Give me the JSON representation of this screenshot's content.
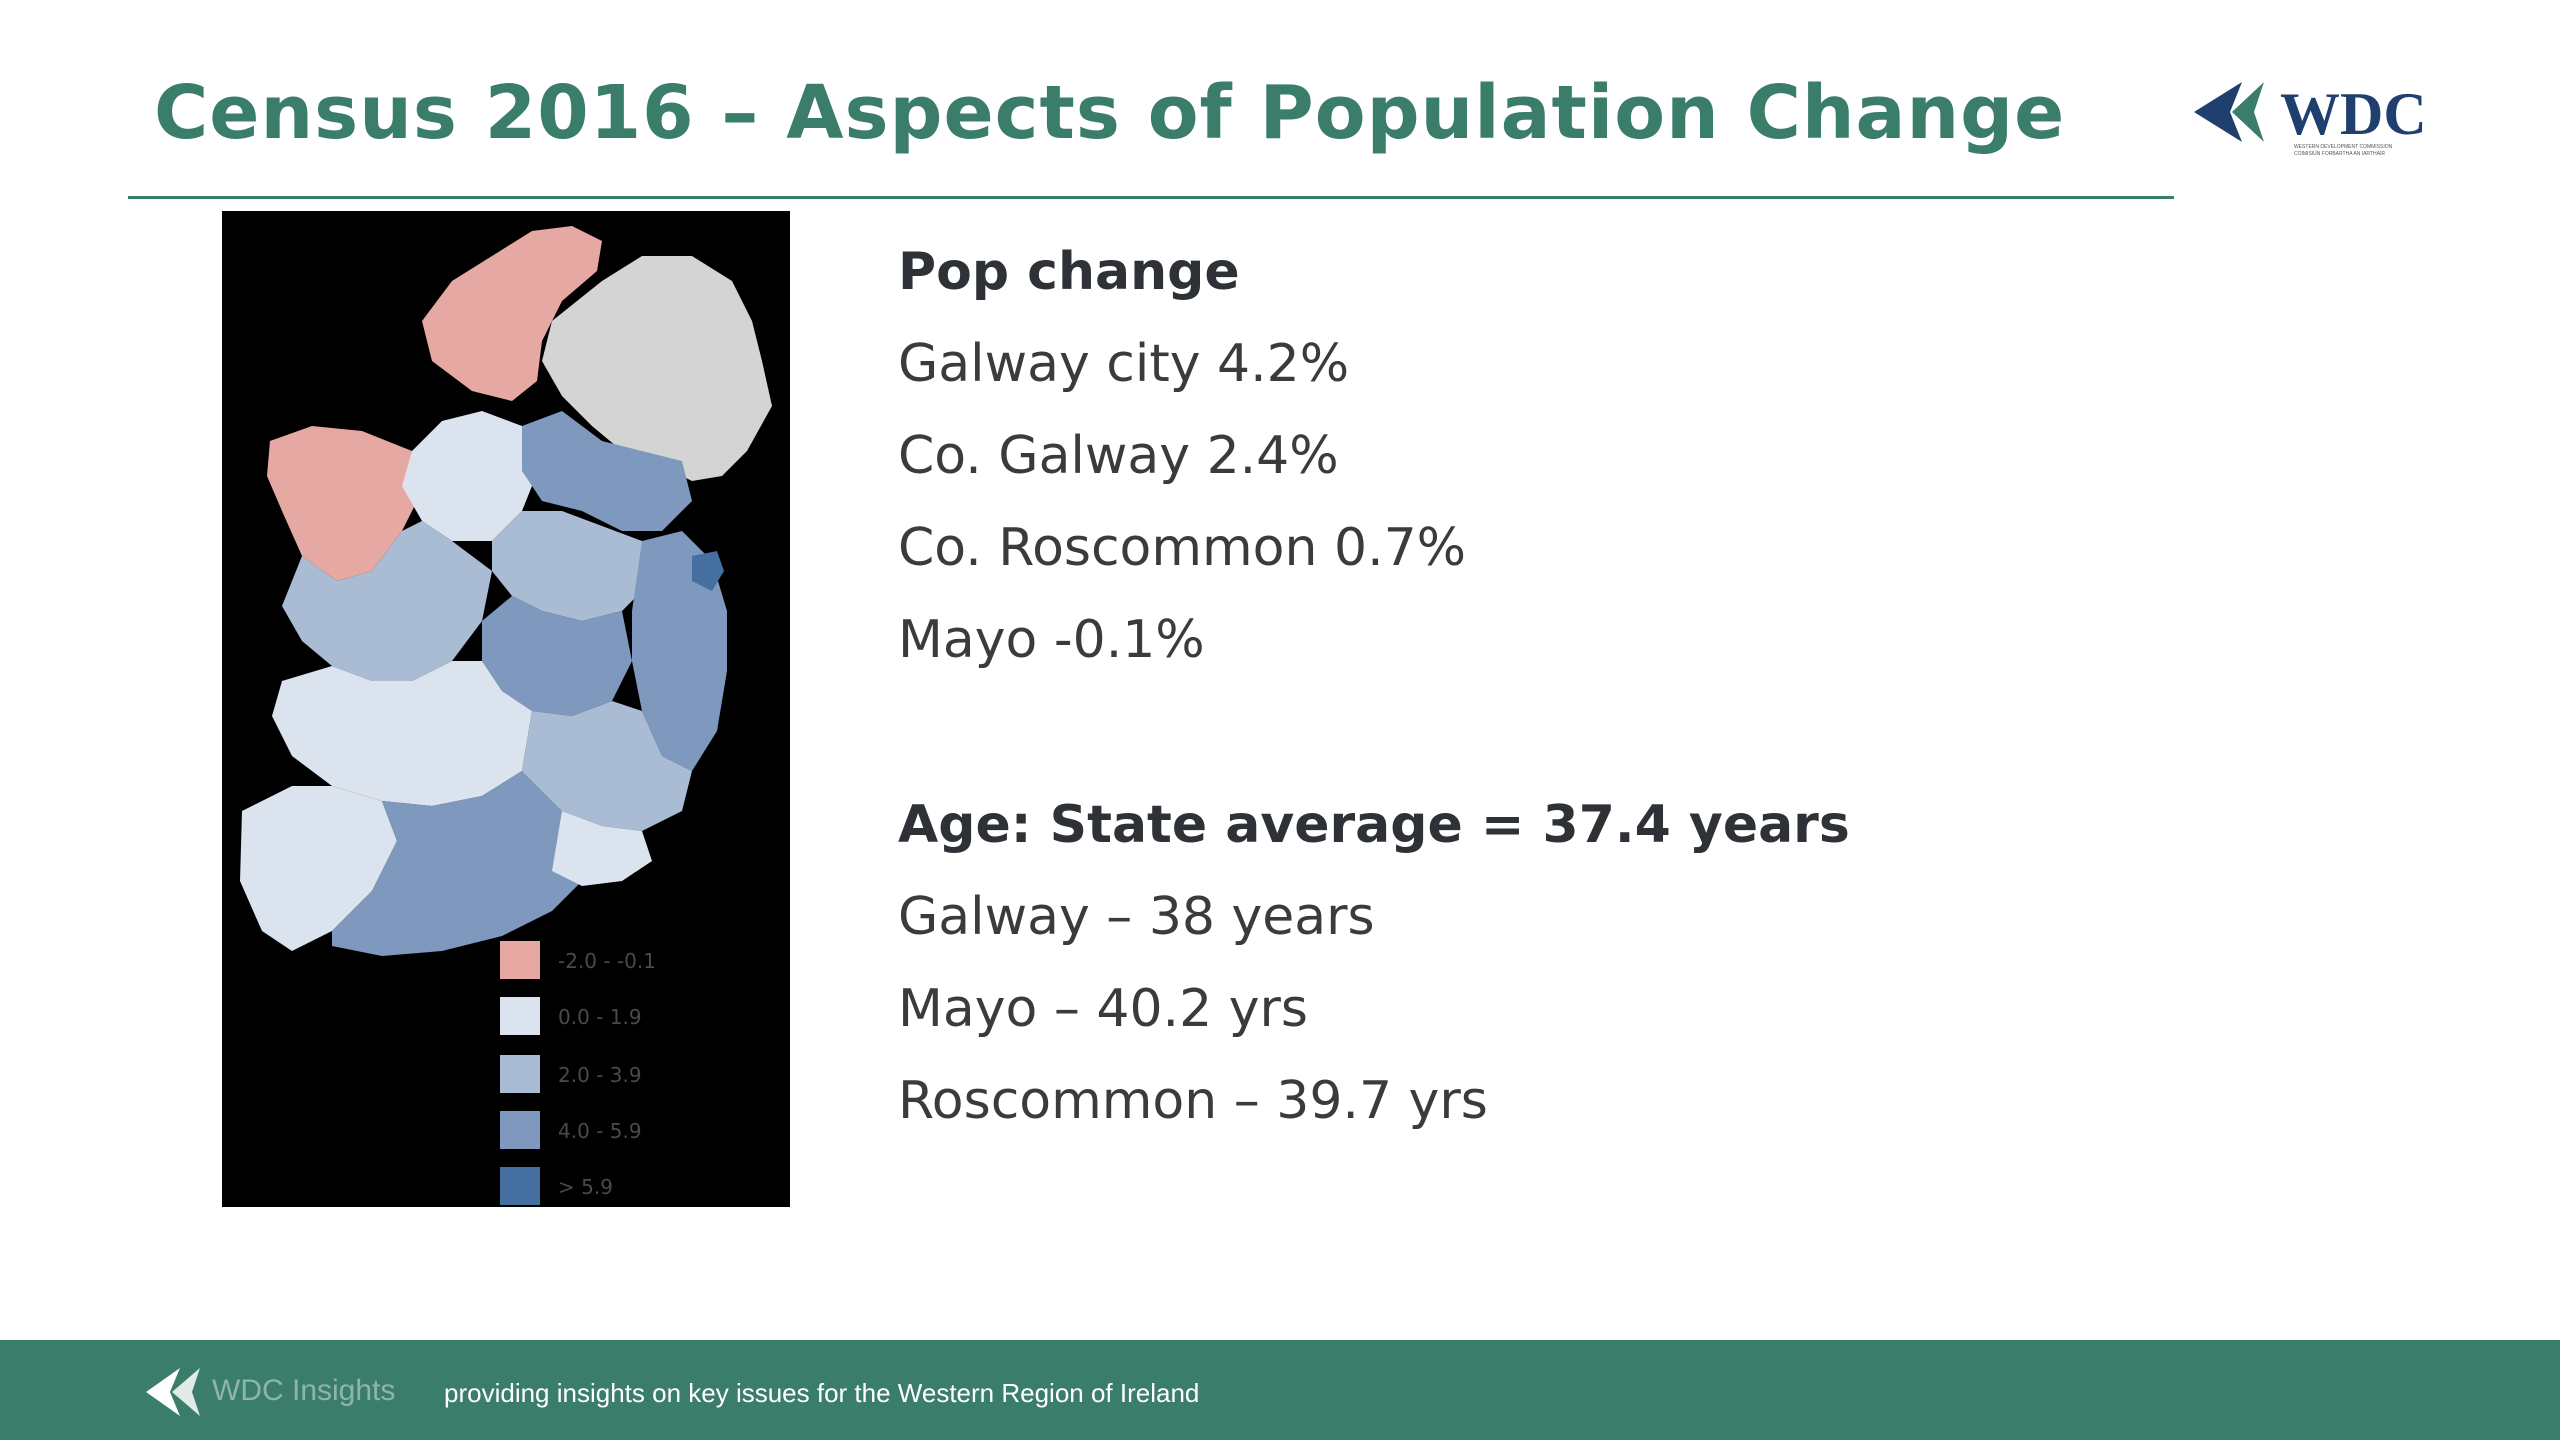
{
  "slide": {
    "title": "Census 2016 – Aspects of Population Change"
  },
  "logo": {
    "text": "WDC",
    "tagline_1": "WESTERN DEVELOPMENT COMMISSION",
    "tagline_2": "COIMISIÚN FORBARTHA AN IARTHAIR"
  },
  "map": {
    "legend": [
      {
        "label": "-2.0 - -0.1",
        "color": "#e6a8a2"
      },
      {
        "label": "0.0 - 1.9",
        "color": "#dbe3ee"
      },
      {
        "label": "2.0 - 3.9",
        "color": "#a9bcd4"
      },
      {
        "label": "4.0 - 5.9",
        "color": "#7e99bd"
      },
      {
        "label": "> 5.9",
        "color": "#456f9e"
      }
    ]
  },
  "pop_change": {
    "heading": "Pop change",
    "items": [
      "Galway city 4.2%",
      "Co. Galway 2.4%",
      "Co. Roscommon 0.7%",
      "Mayo -0.1%"
    ]
  },
  "age": {
    "heading": "Age: State average = 37.4 years",
    "items": [
      "Galway – 38 years",
      "Mayo – 40.2 yrs",
      "Roscommon – 39.7 yrs"
    ]
  },
  "footer": {
    "brand": "WDC Insights",
    "tagline": "providing insights on key issues for the Western Region of Ireland"
  },
  "colors": {
    "accent": "#3a7d6b",
    "logo_blue": "#1f3f6e",
    "ni_grey": "#d4d4d4"
  }
}
